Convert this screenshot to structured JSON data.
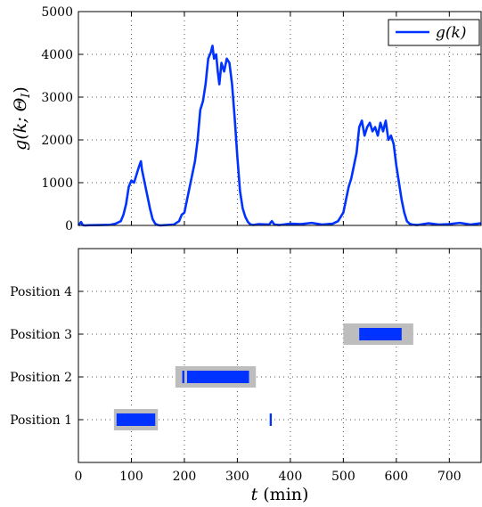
{
  "chart_data": [
    {
      "type": "line",
      "title": "",
      "xlabel": "",
      "ylabel": "g(k; Θ_I)",
      "ylabel_parts": {
        "base": "g(k; Θ",
        "sub": "I",
        "close": ")"
      },
      "xlim": [
        0,
        760
      ],
      "ylim": [
        0,
        5000
      ],
      "yticks": [
        0,
        1000,
        2000,
        3000,
        4000,
        5000
      ],
      "grid": true,
      "legend": {
        "placement": "top-right",
        "entries": [
          "g(k)"
        ]
      },
      "series": [
        {
          "name": "g(k)",
          "color": "#0033ff",
          "x": [
            0,
            5,
            8,
            12,
            20,
            40,
            60,
            70,
            80,
            85,
            90,
            95,
            100,
            105,
            110,
            115,
            118,
            120,
            125,
            130,
            135,
            140,
            145,
            150,
            155,
            160,
            180,
            190,
            195,
            200,
            205,
            210,
            215,
            220,
            225,
            230,
            235,
            240,
            245,
            250,
            253,
            256,
            260,
            263,
            266,
            270,
            275,
            280,
            285,
            290,
            295,
            300,
            305,
            310,
            315,
            320,
            325,
            330,
            340,
            360,
            365,
            370,
            380,
            400,
            420,
            440,
            460,
            480,
            490,
            500,
            505,
            510,
            515,
            520,
            525,
            530,
            535,
            540,
            545,
            550,
            555,
            560,
            565,
            570,
            575,
            580,
            585,
            590,
            595,
            600,
            605,
            610,
            615,
            620,
            625,
            630,
            640,
            660,
            680,
            700,
            720,
            740,
            760
          ],
          "y": [
            0,
            80,
            10,
            0,
            5,
            10,
            15,
            40,
            100,
            250,
            500,
            900,
            1050,
            1000,
            1200,
            1400,
            1500,
            1300,
            1000,
            700,
            400,
            150,
            40,
            10,
            0,
            5,
            20,
            100,
            250,
            300,
            600,
            900,
            1200,
            1500,
            2000,
            2700,
            2900,
            3300,
            3900,
            4050,
            4200,
            3900,
            4000,
            3600,
            3300,
            3800,
            3600,
            3900,
            3800,
            3300,
            2500,
            1600,
            800,
            400,
            200,
            80,
            20,
            10,
            30,
            20,
            100,
            20,
            10,
            40,
            30,
            60,
            20,
            40,
            100,
            300,
            600,
            900,
            1100,
            1400,
            1700,
            2300,
            2450,
            2100,
            2300,
            2400,
            2200,
            2300,
            2100,
            2400,
            2200,
            2450,
            2000,
            2100,
            1900,
            1400,
            1000,
            600,
            300,
            100,
            40,
            20,
            10,
            50,
            20,
            30,
            60,
            20,
            50
          ]
        }
      ]
    },
    {
      "type": "timeline",
      "title": "",
      "xlabel": "t (min)",
      "xlabel_parts": {
        "var": "t",
        "unit": " (min)"
      },
      "ylabel": "",
      "xlim": [
        0,
        760
      ],
      "xticks": [
        0,
        100,
        200,
        300,
        400,
        500,
        600,
        700
      ],
      "categories": [
        "Position 1",
        "Position 2",
        "Position 3",
        "Position 4"
      ],
      "ylim": [
        0,
        5
      ],
      "grid": true,
      "colors": {
        "estimate": "#0033ff",
        "ground_truth": "#bdbdbd"
      },
      "ground_truth": [
        {
          "position": 1,
          "start": 67,
          "end": 150
        },
        {
          "position": 2,
          "start": 183,
          "end": 335
        },
        {
          "position": 3,
          "start": 500,
          "end": 632
        }
      ],
      "estimates": [
        {
          "position": 1,
          "start": 72,
          "end": 145
        },
        {
          "position": 1,
          "start": 361,
          "end": 365
        },
        {
          "position": 2,
          "start": 196,
          "end": 200
        },
        {
          "position": 2,
          "start": 205,
          "end": 322
        },
        {
          "position": 3,
          "start": 530,
          "end": 610
        }
      ]
    }
  ]
}
